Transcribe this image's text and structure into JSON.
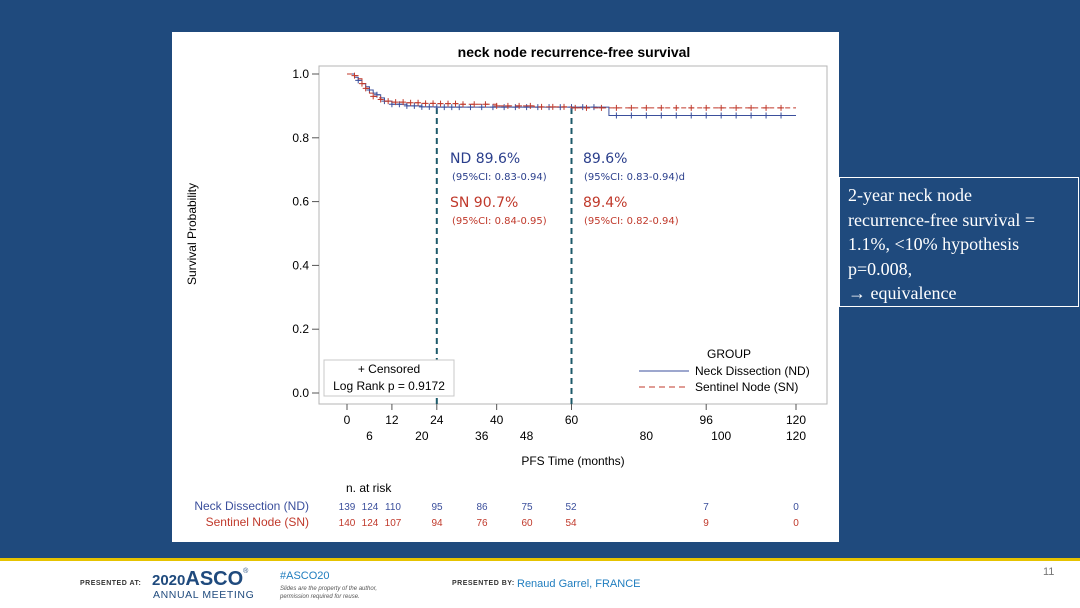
{
  "colors": {
    "background": "#1f4a7d",
    "nd": "#3b4f9c",
    "sn": "#c0392b",
    "accent": "#e6c300",
    "dash": "#1d5a6a"
  },
  "chart_data": {
    "type": "line",
    "title": "neck node recurrence-free survival",
    "xlabel": "PFS Time (months)",
    "ylabel": "Survival Probability",
    "xlim": [
      0,
      120
    ],
    "ylim": [
      0,
      1
    ],
    "y_ticks": [
      "0.0",
      "0.2",
      "0.4",
      "0.6",
      "0.8",
      "1.0"
    ],
    "y_tick_values": [
      0,
      0.2,
      0.4,
      0.6,
      0.8,
      1.0
    ],
    "x_ticks_row1": [
      "0",
      "12",
      "24",
      "40",
      "60",
      "96",
      "120"
    ],
    "x_ticks_row1_values": [
      0,
      12,
      24,
      40,
      60,
      96,
      120
    ],
    "x_ticks_row2": [
      "6",
      "20",
      "36",
      "48",
      "80",
      "100",
      "120"
    ],
    "x_ticks_row2_values": [
      6,
      20,
      36,
      48,
      80,
      100,
      120
    ],
    "reference_lines_x": [
      24,
      60
    ],
    "series": [
      {
        "name": "Neck Dissection (ND)",
        "color": "#3b4f9c",
        "x": [
          0,
          2,
          3,
          4,
          5,
          6,
          7,
          8,
          9,
          10,
          12,
          16,
          20,
          24,
          30,
          40,
          50,
          60,
          66,
          70,
          80,
          100,
          120
        ],
        "y": [
          1.0,
          0.99,
          0.98,
          0.97,
          0.96,
          0.95,
          0.94,
          0.935,
          0.925,
          0.915,
          0.905,
          0.9,
          0.897,
          0.896,
          0.896,
          0.896,
          0.896,
          0.896,
          0.896,
          0.87,
          0.87,
          0.87,
          0.87
        ],
        "censored_x": [
          3,
          6,
          8,
          10,
          12,
          14,
          16,
          18,
          20,
          22,
          24,
          26,
          28,
          30,
          33,
          36,
          39,
          42,
          45,
          48,
          51,
          54,
          57,
          60,
          63,
          66,
          72,
          76,
          80,
          84,
          88,
          92,
          96,
          100,
          104,
          108,
          112,
          116
        ]
      },
      {
        "name": "Sentinel Node (SN)",
        "color": "#c0392b",
        "x": [
          0,
          2,
          3,
          4,
          5,
          6,
          7,
          8,
          9,
          10,
          12,
          16,
          20,
          24,
          30,
          40,
          50,
          60,
          120
        ],
        "y": [
          1.0,
          0.995,
          0.985,
          0.97,
          0.955,
          0.94,
          0.93,
          0.925,
          0.92,
          0.915,
          0.912,
          0.91,
          0.908,
          0.907,
          0.905,
          0.9,
          0.897,
          0.894,
          0.894
        ],
        "censored_x": [
          2,
          4,
          5,
          7,
          9,
          11,
          13,
          15,
          17,
          19,
          21,
          23,
          25,
          27,
          29,
          31,
          34,
          37,
          40,
          43,
          46,
          49,
          52,
          55,
          58,
          61,
          64,
          68,
          72,
          76,
          80,
          84,
          88,
          92,
          96,
          100,
          104,
          108,
          112,
          116
        ]
      }
    ],
    "legend_title": "GROUP",
    "legend": [
      "Neck Dissection (ND)",
      "Sentinel Node (SN)"
    ],
    "legend_position": "bottom-right",
    "censored_note": "+ Censored",
    "log_rank": "Log Rank  p = 0.9172",
    "annotations": {
      "nd24_label": "ND 89.6%",
      "nd24_ci": "(95%CI: 0.83-0.94)",
      "sn24_label": "SN 90.7%",
      "sn24_ci": "(95%CI: 0.84-0.95)",
      "nd60_label": "89.6%",
      "nd60_ci": "(95%CI: 0.83-0.94)d",
      "sn60_label": "89.4%",
      "sn60_ci": "(95%CI: 0.82-0.94)"
    },
    "risk_table": {
      "header": "n. at risk",
      "rows": [
        {
          "label": "Neck Dissection (ND)",
          "values": [
            "139",
            "124",
            "110",
            "95",
            "86",
            "75",
            "52",
            "7",
            "0"
          ]
        },
        {
          "label": "Sentinel Node (SN)",
          "values": [
            "140",
            "124",
            "107",
            "94",
            "76",
            "60",
            "54",
            "9",
            "0"
          ]
        }
      ]
    }
  },
  "side_note": {
    "lines": [
      "2-year neck node",
      "recurrence-free survival =",
      "1.1%, <10%  hypothesis",
      "p=0.008,",
      "→ equivalence"
    ]
  },
  "footer": {
    "presented_at": "PRESENTED AT:",
    "meeting_year": "2020",
    "meeting_name": "ASCO",
    "meeting_sub": "ANNUAL MEETING",
    "hashtag": "#ASCO20",
    "disclaimer_1": "Slides are the property of the author,",
    "disclaimer_2": "permission required for reuse.",
    "presented_by": "PRESENTED BY:",
    "presenter": "Renaud Garrel, FRANCE",
    "page_number": "11"
  }
}
